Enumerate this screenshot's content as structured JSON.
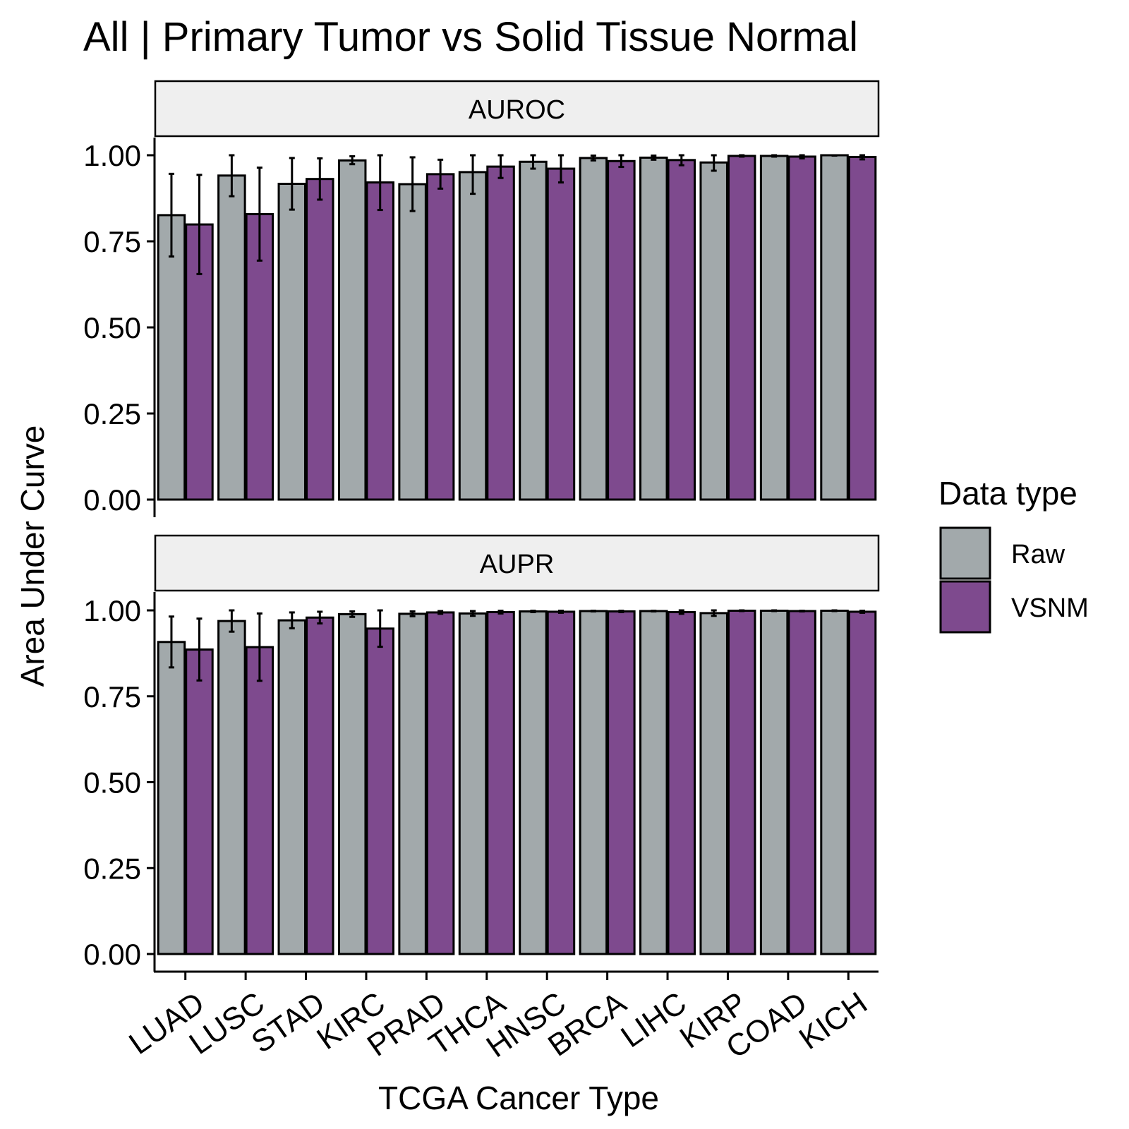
{
  "chart_data": {
    "type": "bar",
    "title": "All | Primary Tumor vs Solid Tissue Normal",
    "xlabel": "TCGA Cancer Type",
    "ylabel": "Area Under Curve",
    "ylim": [
      0,
      1
    ],
    "yticks": [
      "0.00",
      "0.25",
      "0.50",
      "0.75",
      "1.00"
    ],
    "categories": [
      "LUAD",
      "LUSC",
      "STAD",
      "KIRC",
      "PRAD",
      "THCA",
      "HNSC",
      "BRCA",
      "LIHC",
      "KIRP",
      "COAD",
      "KICH"
    ],
    "legend": {
      "title": "Data type",
      "position": "right",
      "items": [
        {
          "name": "Raw",
          "color": "#a2a9ab"
        },
        {
          "name": "VSNM",
          "color": "#7e4a8e"
        }
      ]
    },
    "facets": [
      {
        "label": "AUROC",
        "series": [
          {
            "name": "Raw",
            "values": [
              0.826,
              0.941,
              0.917,
              0.985,
              0.916,
              0.951,
              0.981,
              0.992,
              0.993,
              0.979,
              0.998,
              1.0
            ],
            "lower": [
              0.706,
              0.881,
              0.842,
              0.974,
              0.838,
              0.888,
              0.961,
              0.985,
              0.987,
              0.955,
              0.996,
              0.999
            ],
            "upper": [
              0.946,
              1.0,
              0.992,
              0.997,
              0.994,
              1.0,
              1.0,
              0.999,
              0.999,
              1.0,
              1.0,
              1.0
            ]
          },
          {
            "name": "VSNM",
            "values": [
              0.799,
              0.829,
              0.931,
              0.921,
              0.945,
              0.967,
              0.961,
              0.983,
              0.986,
              0.998,
              0.996,
              0.995
            ],
            "lower": [
              0.655,
              0.694,
              0.871,
              0.841,
              0.903,
              0.934,
              0.921,
              0.966,
              0.971,
              0.996,
              0.991,
              0.988
            ],
            "upper": [
              0.943,
              0.964,
              0.991,
              1.0,
              0.987,
              1.0,
              1.0,
              1.0,
              1.0,
              1.0,
              1.0,
              1.0
            ]
          }
        ]
      },
      {
        "label": "AUPR",
        "series": [
          {
            "name": "Raw",
            "values": [
              0.908,
              0.969,
              0.971,
              0.989,
              0.99,
              0.991,
              0.997,
              0.998,
              0.998,
              0.992,
              0.999,
              0.999
            ],
            "lower": [
              0.834,
              0.938,
              0.948,
              0.981,
              0.983,
              0.984,
              0.995,
              0.997,
              0.997,
              0.984,
              0.998,
              0.998
            ],
            "upper": [
              0.982,
              1.0,
              0.994,
              0.997,
              0.997,
              0.998,
              0.999,
              0.999,
              0.999,
              1.0,
              1.0,
              1.0
            ]
          },
          {
            "name": "VSNM",
            "values": [
              0.886,
              0.893,
              0.979,
              0.947,
              0.994,
              0.995,
              0.996,
              0.997,
              0.995,
              0.999,
              0.998,
              0.996
            ],
            "lower": [
              0.796,
              0.795,
              0.962,
              0.894,
              0.99,
              0.991,
              0.993,
              0.995,
              0.99,
              0.998,
              0.997,
              0.993
            ],
            "upper": [
              0.976,
              0.991,
              0.996,
              1.0,
              0.998,
              0.999,
              0.999,
              0.999,
              1.0,
              1.0,
              0.999,
              0.999
            ]
          }
        ]
      }
    ]
  }
}
